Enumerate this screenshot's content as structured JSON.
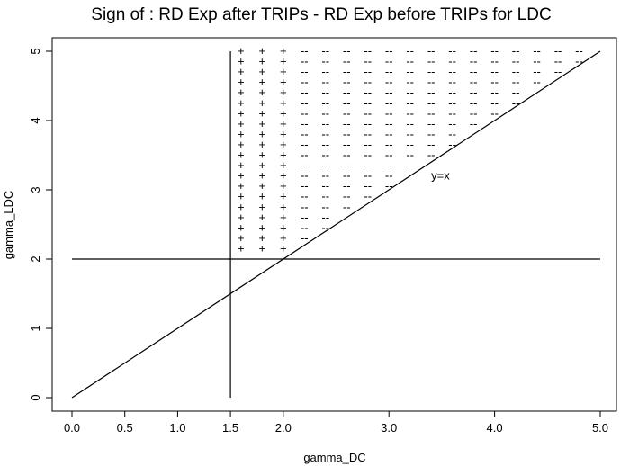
{
  "chart_data": {
    "type": "scatter",
    "title": "Sign of  : RD Exp after TRIPs -  RD Exp before TRIPs for LDC",
    "xlabel": "gamma_DC",
    "ylabel": "gamma_LDC",
    "xlim": [
      0,
      5
    ],
    "ylim": [
      0,
      5
    ],
    "x_ticks": [
      0.0,
      0.5,
      1.0,
      1.5,
      2.0,
      3.0,
      4.0,
      5.0
    ],
    "x_tick_labels": [
      "0.0",
      "0.5",
      "1.0",
      "1.5",
      "2.0",
      "3.0",
      "4.0",
      "5.0"
    ],
    "y_ticks": [
      0,
      1,
      2,
      3,
      4,
      5
    ],
    "y_tick_labels": [
      "0",
      "1",
      "2",
      "3",
      "4",
      "5"
    ],
    "grid": false,
    "legend": "none",
    "lines": [
      {
        "name": "y=x",
        "x": [
          0,
          5
        ],
        "y": [
          0,
          5
        ]
      },
      {
        "name": "",
        "x": [
          1.5,
          1.5
        ],
        "y": [
          0,
          5
        ]
      },
      {
        "name": "",
        "x": [
          0,
          5
        ],
        "y": [
          2,
          2
        ]
      }
    ],
    "annotations": [
      {
        "text": "y=x",
        "x": 3.4,
        "y": 3.15
      }
    ],
    "plus_symbol": "+",
    "minus_symbol": "--",
    "grid_x": [
      1.6,
      1.8,
      2.0,
      2.2,
      2.4,
      2.6,
      2.8,
      3.0,
      3.2,
      3.4,
      3.6,
      3.8,
      4.0,
      4.2,
      4.4,
      4.6,
      4.8
    ],
    "grid_y": [
      2.15,
      2.3,
      2.45,
      2.6,
      2.75,
      2.9,
      3.05,
      3.2,
      3.35,
      3.5,
      3.65,
      3.8,
      3.95,
      4.1,
      4.25,
      4.4,
      4.55,
      4.7,
      4.85,
      5.0
    ],
    "plus_x_max": 2.0
  }
}
